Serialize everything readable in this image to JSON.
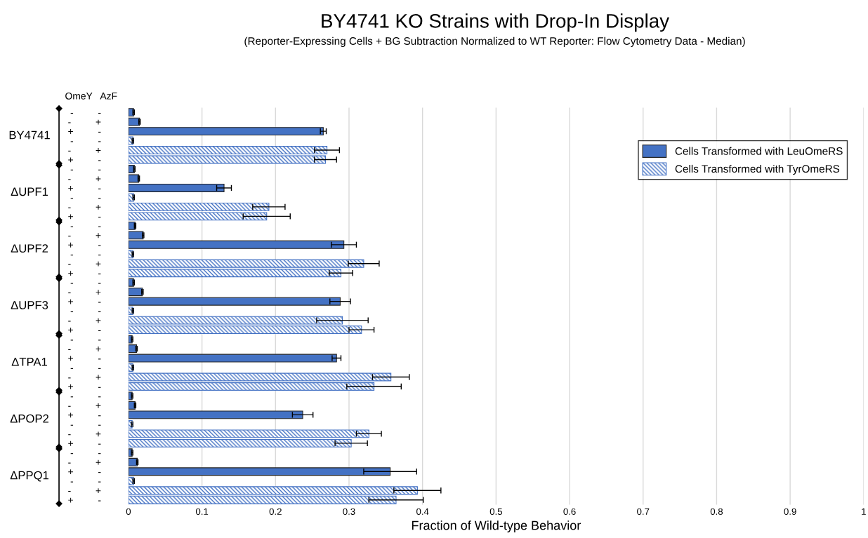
{
  "chart_data": {
    "type": "bar",
    "orientation": "horizontal",
    "title": "BY4741 KO Strains with Drop-In Display",
    "subtitle": "(Reporter-Expressing Cells + BG Subtraction Normalized to WT Reporter: Flow Cytometry Data - Median)",
    "xlabel": "Fraction of Wild-type Behavior",
    "annotations": [
      "OmeY   AzF",
      "BY4741",
      "ΔUPF1",
      "ΔUPF2",
      "ΔUPF3",
      "ΔTPA1",
      "ΔPOP2",
      "ΔPPQ1"
    ],
    "categories": [
      "-         -",
      "-         +",
      "+         -",
      "-         -",
      "-         +",
      "+         -",
      "-         -",
      "-         +",
      "+         -",
      "-         -",
      "-         +",
      "+         -",
      "-         -",
      "-         +",
      "+         -",
      "-         -",
      "-         +",
      "+         -",
      "-         -",
      "-         +",
      "+         -",
      "-         -",
      "-         +",
      "+         -",
      "-         -",
      "-         +",
      "+         -",
      "-         -",
      "-         +",
      "+         -",
      "-         -",
      "-         +",
      "+         -",
      "-         -",
      "-         +",
      "+         -",
      "-         -",
      "-         +",
      "+         -",
      "-         -",
      "-         +",
      "+         -"
    ],
    "series": [
      {
        "name": "Cells Transformed with LeuOmeRS",
        "color": "#4472c4",
        "values": [
          0.007,
          0.015,
          0.265,
          null,
          null,
          null,
          0.008,
          0.014,
          0.13,
          null,
          null,
          null,
          0.009,
          0.02,
          0.293,
          null,
          null,
          null,
          0.007,
          0.019,
          0.288,
          null,
          null,
          null,
          0.005,
          0.011,
          0.283,
          null,
          null,
          null,
          0.005,
          0.009,
          0.237,
          null,
          null,
          null,
          0.005,
          0.012,
          0.356,
          null,
          null,
          null
        ],
        "errors": [
          0.001,
          0.001,
          0.004,
          null,
          null,
          null,
          0.001,
          0.001,
          0.01,
          null,
          null,
          null,
          0.001,
          0.001,
          0.017,
          null,
          null,
          null,
          0.001,
          0.001,
          0.014,
          null,
          null,
          null,
          0.001,
          0.001,
          0.006,
          null,
          null,
          null,
          0.001,
          0.001,
          0.014,
          null,
          null,
          null,
          0.001,
          0.001,
          0.036,
          null,
          null,
          null
        ]
      },
      {
        "name": "Cells Transformed with TyrOmeRS",
        "color": "#4472c4",
        "values": [
          null,
          null,
          null,
          0.006,
          0.27,
          0.268,
          null,
          null,
          null,
          0.007,
          0.191,
          0.188,
          null,
          null,
          null,
          0.006,
          0.32,
          0.289,
          null,
          null,
          null,
          0.006,
          0.291,
          0.317,
          null,
          null,
          null,
          0.006,
          0.357,
          0.334,
          null,
          null,
          null,
          0.005,
          0.327,
          0.303,
          null,
          null,
          null,
          0.007,
          0.393,
          0.364
        ],
        "errors": [
          null,
          null,
          null,
          0.001,
          0.017,
          0.015,
          null,
          null,
          null,
          0.001,
          0.022,
          0.032,
          null,
          null,
          null,
          0.001,
          0.021,
          0.016,
          null,
          null,
          null,
          0.001,
          0.035,
          0.017,
          null,
          null,
          null,
          0.001,
          0.025,
          0.037,
          null,
          null,
          null,
          0.001,
          0.017,
          0.022,
          null,
          null,
          null,
          0.001,
          0.032,
          0.037
        ]
      }
    ],
    "xlim": [
      0,
      1
    ],
    "xticks": [
      0,
      0.1,
      0.2,
      0.3,
      0.4,
      0.5,
      0.6,
      0.7,
      0.8,
      0.9,
      1
    ],
    "grid": "x",
    "legend": "top right"
  }
}
